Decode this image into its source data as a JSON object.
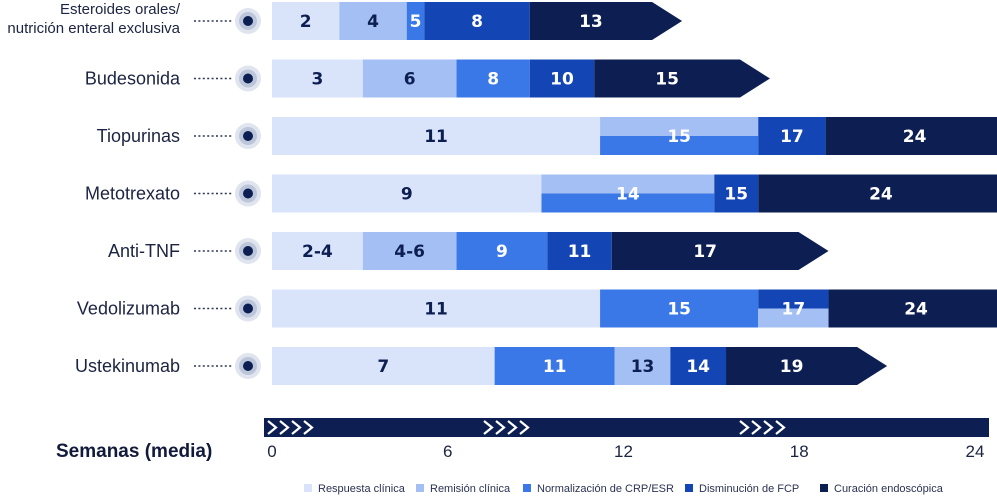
{
  "chart_data": {
    "type": "bar",
    "orientation": "horizontal-stacked-timeline",
    "xlabel": "Semanas (media)",
    "xlim": [
      0,
      24
    ],
    "xticks": [
      0,
      6,
      12,
      18,
      24
    ],
    "legend_position": "bottom",
    "legend": [
      {
        "name": "Respuesta clínica",
        "color": "#d9e4fb"
      },
      {
        "name": "Remisión clínica",
        "color": "#a3bff3"
      },
      {
        "name": "Normalización de CRP/ESR",
        "color": "#3b78e7"
      },
      {
        "name": "Disminución de FCP",
        "color": "#1346b4"
      },
      {
        "name": "Curación endoscópica",
        "color": "#0d1f52"
      }
    ],
    "rows": [
      {
        "label": [
          "Esteroides orales/",
          "nutrición enteral exclusiva"
        ],
        "end": 14,
        "segments": [
          {
            "milestone": 0,
            "to": 2.3,
            "label": "2"
          },
          {
            "milestone": 1,
            "to": 4.6,
            "label": "4"
          },
          {
            "milestone": 2,
            "to": 5.2,
            "label": "5"
          },
          {
            "milestone": 3,
            "to": 8.8,
            "label": "8"
          },
          {
            "milestone": 4,
            "to": 13,
            "label": "13"
          }
        ]
      },
      {
        "label": [
          "Budesonida"
        ],
        "end": 17,
        "segments": [
          {
            "milestone": 0,
            "to": 3.1,
            "label": "3"
          },
          {
            "milestone": 1,
            "to": 6.3,
            "label": "6"
          },
          {
            "milestone": 2,
            "to": 8.8,
            "label": "8"
          },
          {
            "milestone": 3,
            "to": 11,
            "label": "10"
          },
          {
            "milestone": 4,
            "to": 16,
            "label": "15"
          }
        ]
      },
      {
        "label": [
          "Tiopurinas"
        ],
        "end": 26,
        "segments": [
          {
            "milestone": 0,
            "to": 11.2,
            "label": "11"
          },
          {
            "milestone": 1,
            "to": 16.6,
            "label": "15",
            "split_with": 2
          },
          {
            "milestone": 3,
            "to": 18.9,
            "label": "17"
          },
          {
            "milestone": 4,
            "to": 25,
            "label": "24"
          }
        ]
      },
      {
        "label": [
          "Metotrexato"
        ],
        "end": 26,
        "segments": [
          {
            "milestone": 0,
            "to": 9.2,
            "label": "9"
          },
          {
            "milestone": 1,
            "to": 15.1,
            "label": "14",
            "split_with": 2
          },
          {
            "milestone": 3,
            "to": 16.6,
            "label": "15"
          },
          {
            "milestone": 4,
            "to": 25,
            "label": "24"
          }
        ]
      },
      {
        "label": [
          "Anti-TNF"
        ],
        "end": 19,
        "segments": [
          {
            "milestone": 0,
            "to": 3.1,
            "label": "2-4"
          },
          {
            "milestone": 1,
            "to": 6.3,
            "label": "4-6"
          },
          {
            "milestone": 2,
            "to": 9.4,
            "label": "9"
          },
          {
            "milestone": 3,
            "to": 11.6,
            "label": "11"
          },
          {
            "milestone": 4,
            "to": 18,
            "label": "17"
          }
        ]
      },
      {
        "label": [
          "Vedolizumab"
        ],
        "end": 26,
        "segments": [
          {
            "milestone": 0,
            "to": 11.2,
            "label": "11"
          },
          {
            "milestone": 2,
            "to": 16.6,
            "label": "15"
          },
          {
            "milestone": 3,
            "to": 19,
            "label": "17",
            "split_with": 1
          },
          {
            "milestone": 4,
            "to": 25,
            "label": "24"
          }
        ]
      },
      {
        "label": [
          "Ustekinumab"
        ],
        "end": 21,
        "segments": [
          {
            "milestone": 0,
            "to": 7.6,
            "label": "7"
          },
          {
            "milestone": 2,
            "to": 11.7,
            "label": "11"
          },
          {
            "milestone": 1,
            "to": 13.6,
            "label": "13"
          },
          {
            "milestone": 3,
            "to": 15.5,
            "label": "14"
          },
          {
            "milestone": 4,
            "to": 20,
            "label": "19"
          }
        ]
      }
    ]
  }
}
